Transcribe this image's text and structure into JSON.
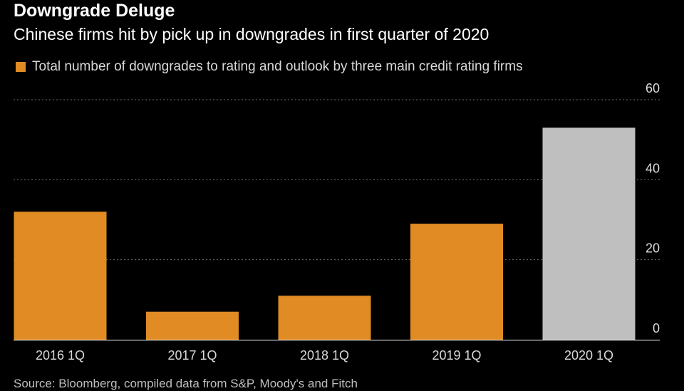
{
  "title": "Downgrade Deluge",
  "subtitle": "Chinese firms hit by pick up in downgrades in first quarter of 2020",
  "source": "Source: Bloomberg, compiled data from S&P, Moody's and Fitch",
  "colors": {
    "background": "#000000",
    "bar": "#e08b24",
    "highlight_bar": "#bfbfbf",
    "gridline": "#6e6e6e",
    "text": "#ffffff",
    "muted_text": "#d9d9d9"
  },
  "chart_data": {
    "type": "bar",
    "title": "Downgrade Deluge",
    "subtitle": "Chinese firms hit by pick up in downgrades in first quarter of 2020",
    "categories": [
      "2016 1Q",
      "2017 1Q",
      "2018 1Q",
      "2019 1Q",
      "2020 1Q"
    ],
    "series": [
      {
        "name": "Total number of downgrades to rating and outlook by three main credit rating firms",
        "values": [
          32,
          7,
          11,
          29,
          53
        ]
      }
    ],
    "highlighted_category": "2020 1Q",
    "ylim": [
      0,
      60
    ],
    "yticks": [
      0,
      20,
      40,
      60
    ],
    "y_axis_side": "right",
    "grid": "horizontal dotted",
    "legend_position": "top-left"
  }
}
